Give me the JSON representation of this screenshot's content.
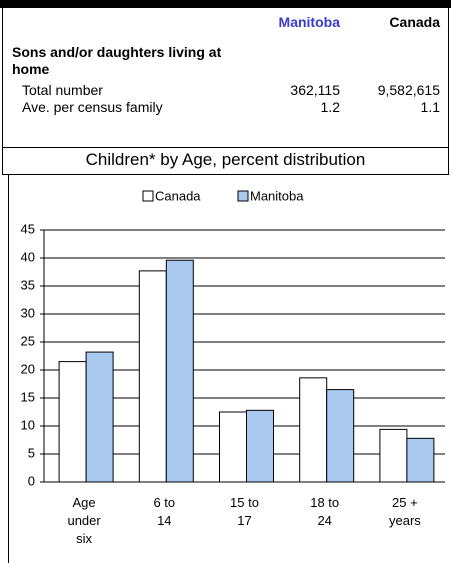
{
  "table": {
    "columns": [
      "Manitoba",
      "Canada"
    ],
    "section": "Sons and/or daughters living at home",
    "rows": [
      [
        "Total number",
        "362,115",
        "9,582,615"
      ],
      [
        "Ave. per census family",
        "1.2",
        "1.1"
      ]
    ]
  },
  "chart_data": {
    "type": "bar",
    "title": "Children* by Age, percent distribution",
    "categories": [
      "Age under six",
      "6 to 14",
      "15 to 17",
      "18 to 24",
      "25 + years"
    ],
    "series": [
      {
        "name": "Canada",
        "color": "#ffffff",
        "values": [
          21.5,
          37.7,
          12.5,
          18.6,
          9.4
        ]
      },
      {
        "name": "Manitoba",
        "color": "#a9c9ee",
        "values": [
          23.2,
          39.6,
          12.8,
          16.5,
          7.8
        ]
      }
    ],
    "ylim": [
      0,
      45
    ],
    "yticks": [
      0,
      5,
      10,
      15,
      20,
      25,
      30,
      35,
      40,
      45
    ],
    "grid": true
  }
}
